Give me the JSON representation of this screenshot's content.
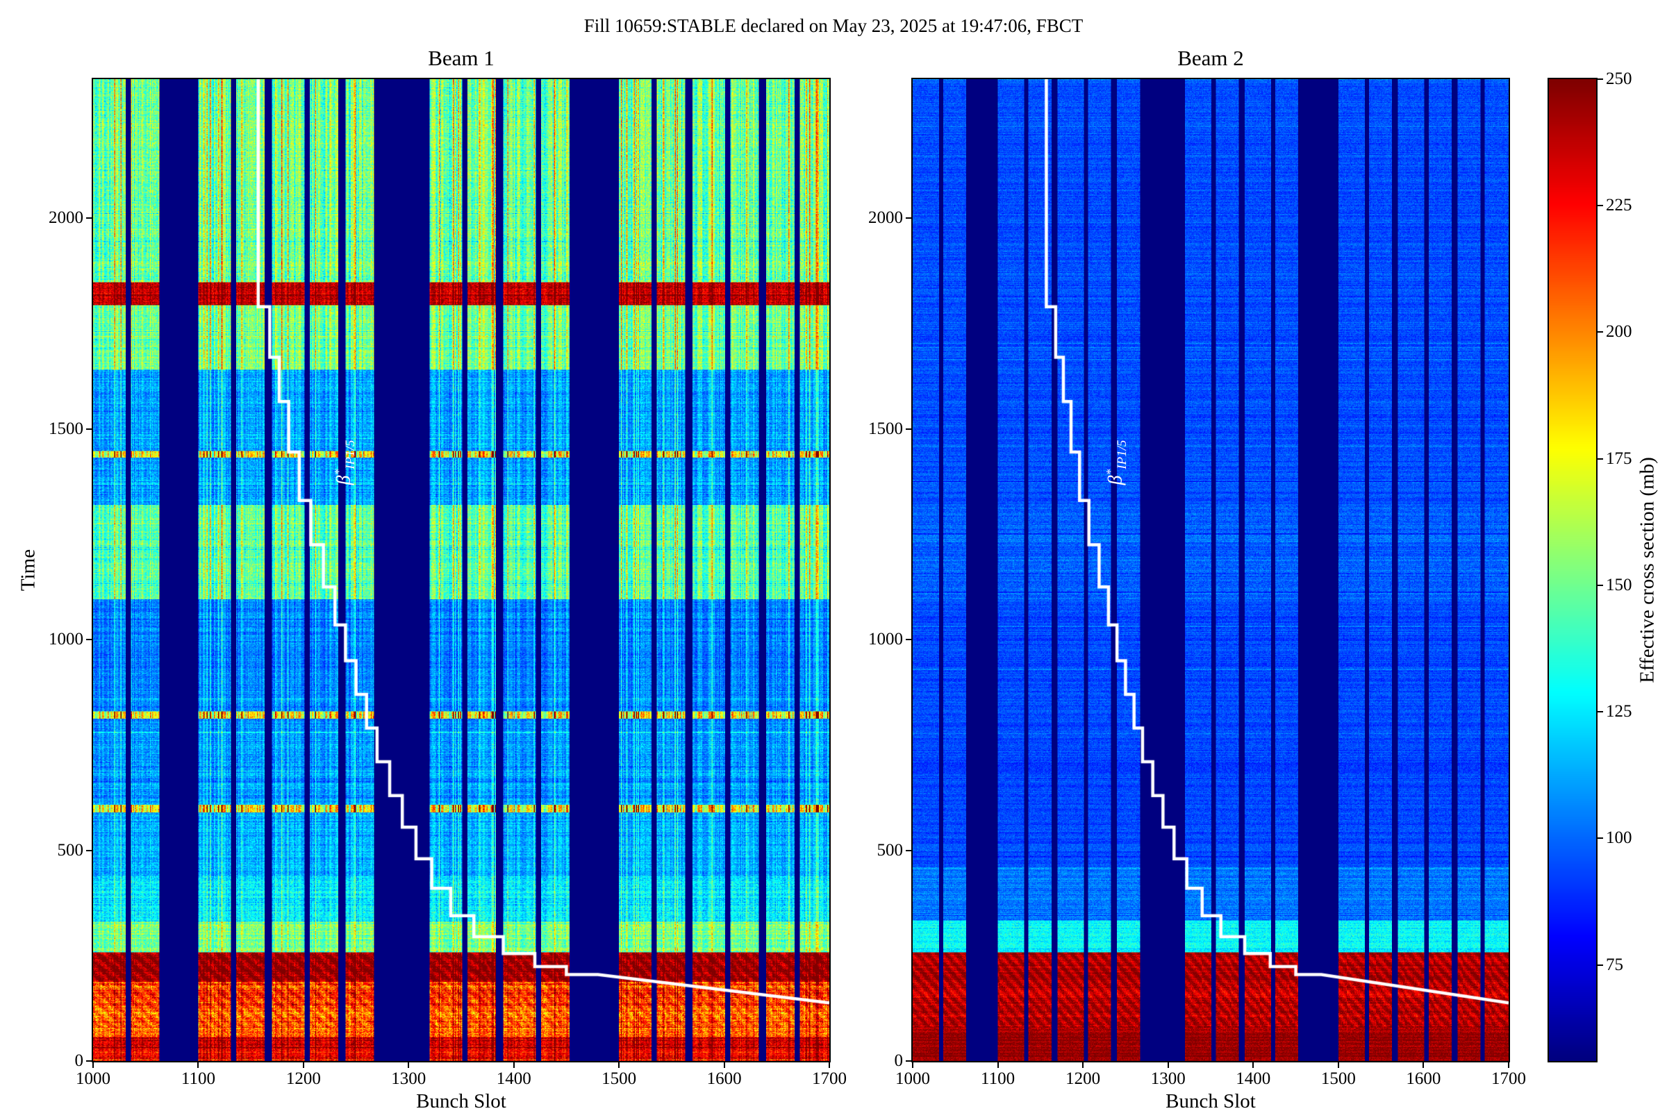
{
  "figure": {
    "title": "Fill 10659:STABLE declared on May 23, 2025 at 19:47:06, FBCT",
    "background": "#ffffff"
  },
  "chart_data": {
    "type": "heatmap",
    "colormap": "jet",
    "vmin": 56,
    "vmax": 250,
    "x": {
      "label": "Bunch Slot",
      "min": 1000,
      "max": 1700,
      "ticks": [
        1000,
        1100,
        1200,
        1300,
        1400,
        1500,
        1600,
        1700
      ]
    },
    "y": {
      "label": "Time",
      "min": 0,
      "max": 2330,
      "ticks": [
        0,
        500,
        1000,
        1500,
        2000
      ]
    },
    "colorbar": {
      "label": "Effective cross section (mb)",
      "ticks": [
        75,
        100,
        125,
        150,
        175,
        200,
        225,
        250
      ]
    },
    "panels": [
      {
        "title": "Beam 1"
      },
      {
        "title": "Beam 2"
      }
    ],
    "trains": [
      [
        1000,
        1030
      ],
      [
        1036,
        1062
      ],
      [
        1100,
        1130
      ],
      [
        1136,
        1162
      ],
      [
        1170,
        1200
      ],
      [
        1206,
        1232
      ],
      [
        1240,
        1266
      ],
      [
        1320,
        1350
      ],
      [
        1356,
        1382
      ],
      [
        1390,
        1420
      ],
      [
        1426,
        1452
      ],
      [
        1500,
        1530
      ],
      [
        1536,
        1562
      ],
      [
        1570,
        1600
      ],
      [
        1606,
        1632
      ],
      [
        1640,
        1666
      ],
      [
        1672,
        1700
      ]
    ],
    "beam1_time_bands": [
      {
        "t": [
          0,
          58
        ],
        "base": 232,
        "cv": 0.18,
        "n": 14,
        "rn": 10
      },
      {
        "t": [
          58,
          130
        ],
        "base": 206,
        "cv": 0.22,
        "n": 18,
        "rn": 14
      },
      {
        "t": [
          130,
          188
        ],
        "base": 215,
        "cv": 0.22,
        "n": 18,
        "rn": 14
      },
      {
        "t": [
          188,
          258
        ],
        "base": 243,
        "cv": 0.12,
        "n": 10,
        "rn": 6
      },
      {
        "t": [
          258,
          330
        ],
        "base": 150,
        "cv": 0.35,
        "n": 14,
        "rn": 10
      },
      {
        "t": [
          330,
          440
        ],
        "base": 125,
        "cv": 0.35,
        "n": 12,
        "rn": 8
      },
      {
        "t": [
          440,
          592
        ],
        "base": 113,
        "cv": 0.4,
        "n": 10,
        "rn": 7
      },
      {
        "t": [
          592,
          800
        ],
        "base": 109,
        "cv": 0.4,
        "n": 10,
        "rn": 7
      },
      {
        "t": [
          800,
          1095
        ],
        "base": 104,
        "cv": 0.45,
        "n": 9,
        "rn": 6
      },
      {
        "t": [
          1095,
          1320
        ],
        "base": 144,
        "cv": 0.55,
        "n": 13,
        "rn": 8
      },
      {
        "t": [
          1320,
          1640
        ],
        "base": 111,
        "cv": 0.45,
        "n": 10,
        "rn": 6
      },
      {
        "t": [
          1640,
          1795
        ],
        "base": 148,
        "cv": 0.55,
        "n": 13,
        "rn": 8
      },
      {
        "t": [
          1795,
          1848
        ],
        "base": 238,
        "cv": 0.18,
        "n": 12,
        "rn": 6
      },
      {
        "t": [
          1848,
          2331
        ],
        "base": 148,
        "cv": 0.6,
        "n": 15,
        "rn": 8
      }
    ],
    "beam2_time_bands": [
      {
        "t": [
          0,
          70
        ],
        "base": 246,
        "cv": 0.08,
        "n": 8,
        "rn": 6
      },
      {
        "t": [
          70,
          188
        ],
        "base": 239,
        "cv": 0.1,
        "n": 10,
        "rn": 8
      },
      {
        "t": [
          188,
          258
        ],
        "base": 243,
        "cv": 0.08,
        "n": 8,
        "rn": 6
      },
      {
        "t": [
          258,
          335
        ],
        "base": 128,
        "cv": 0.15,
        "n": 10,
        "rn": 8
      },
      {
        "t": [
          335,
          460
        ],
        "base": 103,
        "cv": 0.12,
        "n": 8,
        "rn": 6
      },
      {
        "t": [
          460,
          1095
        ],
        "base": 94,
        "cv": 0.12,
        "n": 7,
        "rn": 5
      },
      {
        "t": [
          1095,
          1320
        ],
        "base": 99,
        "cv": 0.15,
        "n": 8,
        "rn": 6
      },
      {
        "t": [
          1320,
          2331
        ],
        "base": 95,
        "cv": 0.12,
        "n": 7,
        "rn": 5
      }
    ],
    "beam1_hot_lines": [
      600,
      820,
      1440
    ],
    "beta_star": {
      "label_beta": "β",
      "label_star": "*",
      "label_sub": "IP1/5",
      "steps": [
        [
          1157,
          2330
        ],
        [
          1157,
          1790
        ],
        [
          1168,
          1790
        ],
        [
          1168,
          1670
        ],
        [
          1177,
          1670
        ],
        [
          1177,
          1565
        ],
        [
          1186,
          1565
        ],
        [
          1186,
          1445
        ],
        [
          1196,
          1445
        ],
        [
          1196,
          1330
        ],
        [
          1207,
          1330
        ],
        [
          1207,
          1225
        ],
        [
          1219,
          1225
        ],
        [
          1219,
          1125
        ],
        [
          1230,
          1125
        ],
        [
          1230,
          1035
        ],
        [
          1240,
          1035
        ],
        [
          1240,
          950
        ],
        [
          1250,
          950
        ],
        [
          1250,
          870
        ],
        [
          1260,
          870
        ],
        [
          1260,
          790
        ],
        [
          1270,
          790
        ],
        [
          1270,
          710
        ],
        [
          1282,
          710
        ],
        [
          1282,
          630
        ],
        [
          1294,
          630
        ],
        [
          1294,
          555
        ],
        [
          1307,
          555
        ],
        [
          1307,
          480
        ],
        [
          1322,
          480
        ],
        [
          1322,
          410
        ],
        [
          1340,
          410
        ],
        [
          1340,
          345
        ],
        [
          1362,
          345
        ],
        [
          1362,
          295
        ],
        [
          1390,
          295
        ],
        [
          1390,
          255
        ],
        [
          1420,
          255
        ],
        [
          1420,
          224
        ],
        [
          1450,
          224
        ],
        [
          1450,
          205
        ],
        [
          1480,
          205
        ],
        [
          1700,
          138
        ]
      ]
    }
  }
}
